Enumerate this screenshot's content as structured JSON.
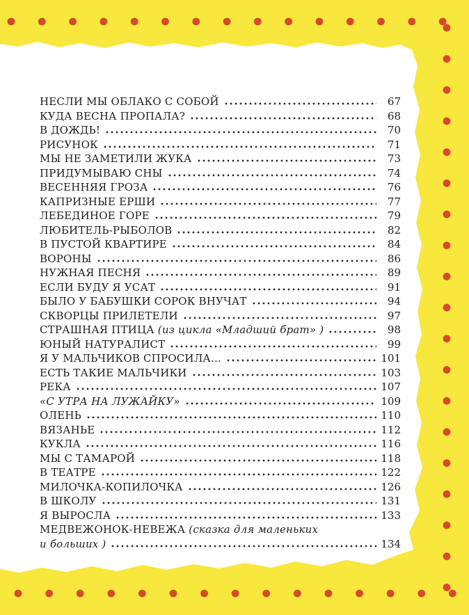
{
  "page": {
    "background_color": "#F8E73C",
    "border_dot_color": "#D6492C",
    "paper_color": "#FFFFFF",
    "text_color": "#1E1E1E"
  },
  "toc": {
    "entries": [
      {
        "title": "НЕСЛИ МЫ ОБЛАКО С СОБОЙ",
        "page": "67"
      },
      {
        "title": "КУДА ВЕСНА ПРОПАЛА?",
        "page": "68"
      },
      {
        "title": "В ДОЖДЬ!",
        "page": "70"
      },
      {
        "title": "РИСУНОК",
        "page": "71"
      },
      {
        "title": "МЫ НЕ ЗАМЕТИЛИ ЖУКА",
        "page": "73"
      },
      {
        "title": "ПРИДУМЫВАЮ СНЫ",
        "page": "74"
      },
      {
        "title": "ВЕСЕННЯЯ ГРОЗА",
        "page": "76"
      },
      {
        "title": "КАПРИЗНЫЕ ЕРШИ",
        "page": "77"
      },
      {
        "title": "ЛЕБЕДИНОЕ ГОРЕ",
        "page": "79"
      },
      {
        "title": "ЛЮБИТЕЛЬ-РЫБОЛОВ",
        "page": "82"
      },
      {
        "title": "В ПУСТОЙ КВАРТИРЕ",
        "page": "84"
      },
      {
        "title": "ВОРОНЫ",
        "page": "86"
      },
      {
        "title": "НУЖНАЯ ПЕСНЯ",
        "page": "89"
      },
      {
        "title": "ЕСЛИ БУДУ Я УСАТ",
        "page": "91"
      },
      {
        "title": "БЫЛО У БАБУШКИ СОРОК ВНУЧАТ",
        "page": "94"
      },
      {
        "title": "СКВОРЦЫ ПРИЛЕТЕЛИ",
        "page": "97"
      },
      {
        "title": "СТРАШНАЯ ПТИЦА",
        "note": "(из цикла «Младший брат» )",
        "page": "98"
      },
      {
        "title": "ЮНЫЙ НАТУРАЛИСТ",
        "page": "99"
      },
      {
        "title": "Я У МАЛЬЧИКОВ СПРОСИЛА...",
        "page": "101"
      },
      {
        "title": "ЕСТЬ ТАКИЕ МАЛЬЧИКИ",
        "page": "103"
      },
      {
        "title": "РЕКА",
        "page": "107"
      },
      {
        "title": "«С УТРА НА ЛУЖАЙКУ»",
        "italic": true,
        "page": "109"
      },
      {
        "title": "ОЛЕНЬ",
        "page": "110"
      },
      {
        "title": "ВЯЗАНЬЕ",
        "page": "112"
      },
      {
        "title": "КУКЛА",
        "page": "116"
      },
      {
        "title": "МЫ С ТАМАРОЙ",
        "page": "118"
      },
      {
        "title": "В ТЕАТРЕ",
        "page": "122"
      },
      {
        "title": "МИЛОЧКА-КОПИЛОЧКА",
        "page": "126"
      },
      {
        "title": "В ШКОЛУ",
        "page": "131"
      },
      {
        "title": "Я ВЫРОСЛА",
        "page": "133"
      },
      {
        "title": "МЕДВЕЖОНОК-НЕВЕЖА",
        "note": "(сказка для маленьких",
        "continuation": "и больших )",
        "page": "134"
      }
    ]
  }
}
